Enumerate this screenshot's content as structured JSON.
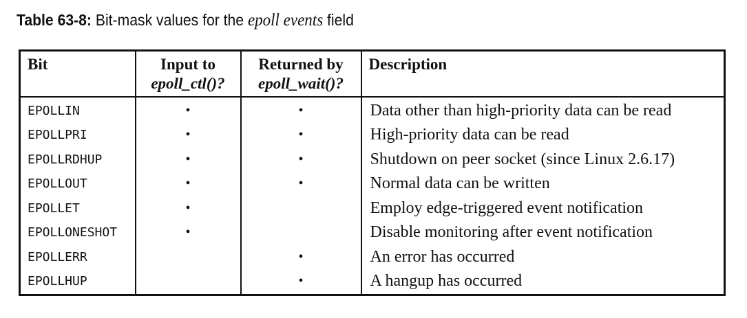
{
  "caption": {
    "number": "Table 63-8:",
    "prefix": "Bit-mask values for the",
    "emphasis": "epoll events",
    "suffix": "field"
  },
  "table": {
    "headers": {
      "bit": "Bit",
      "input_line1": "Input to",
      "input_line2": "epoll_ctl()?",
      "returned_line1": "Returned by",
      "returned_line2": "epoll_wait()?",
      "description": "Description"
    },
    "marker": "•",
    "rows": [
      {
        "bit": "EPOLLIN",
        "input": "•",
        "returned": "•",
        "description": "Data other than high-priority data can be read"
      },
      {
        "bit": "EPOLLPRI",
        "input": "•",
        "returned": "•",
        "description": "High-priority data can be read"
      },
      {
        "bit": "EPOLLRDHUP",
        "input": "•",
        "returned": "•",
        "description": "Shutdown on peer socket (since Linux 2.6.17)"
      },
      {
        "bit": "EPOLLOUT",
        "input": "•",
        "returned": "•",
        "description": "Normal data can be written"
      },
      {
        "bit": "EPOLLET",
        "input": "•",
        "returned": "",
        "description": "Employ edge-triggered event notification"
      },
      {
        "bit": "EPOLLONESHOT",
        "input": "•",
        "returned": "",
        "description": "Disable monitoring after event notification"
      },
      {
        "bit": "EPOLLERR",
        "input": "",
        "returned": "•",
        "description": "An error has occurred"
      },
      {
        "bit": "EPOLLHUP",
        "input": "",
        "returned": "•",
        "description": "A hangup has occurred"
      }
    ]
  }
}
